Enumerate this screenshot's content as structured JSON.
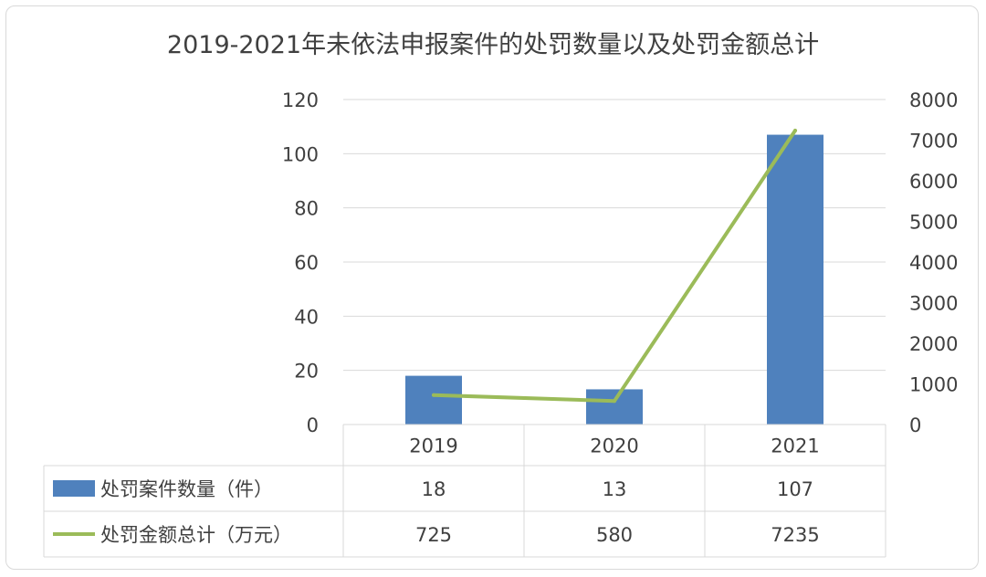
{
  "chart_data": {
    "type": "bar",
    "title": "2019-2021年未依法申报案件的处罚数量以及处罚金额总计",
    "categories": [
      "2019",
      "2020",
      "2021"
    ],
    "series": [
      {
        "name": "处罚案件数量（件）",
        "type": "bar",
        "axis": "left",
        "values": [
          18,
          13,
          107
        ],
        "color": "#4f81bd"
      },
      {
        "name": "处罚金额总计（万元）",
        "type": "line",
        "axis": "right",
        "values": [
          725,
          580,
          7235
        ],
        "color": "#9bbb59"
      }
    ],
    "y_left": {
      "min": 0,
      "max": 120,
      "ticks": [
        0,
        20,
        40,
        60,
        80,
        100,
        120
      ]
    },
    "y_right": {
      "min": 0,
      "max": 8000,
      "ticks": [
        0,
        1000,
        2000,
        3000,
        4000,
        5000,
        6000,
        7000,
        8000
      ]
    },
    "grid": true,
    "legend": "data-table"
  }
}
